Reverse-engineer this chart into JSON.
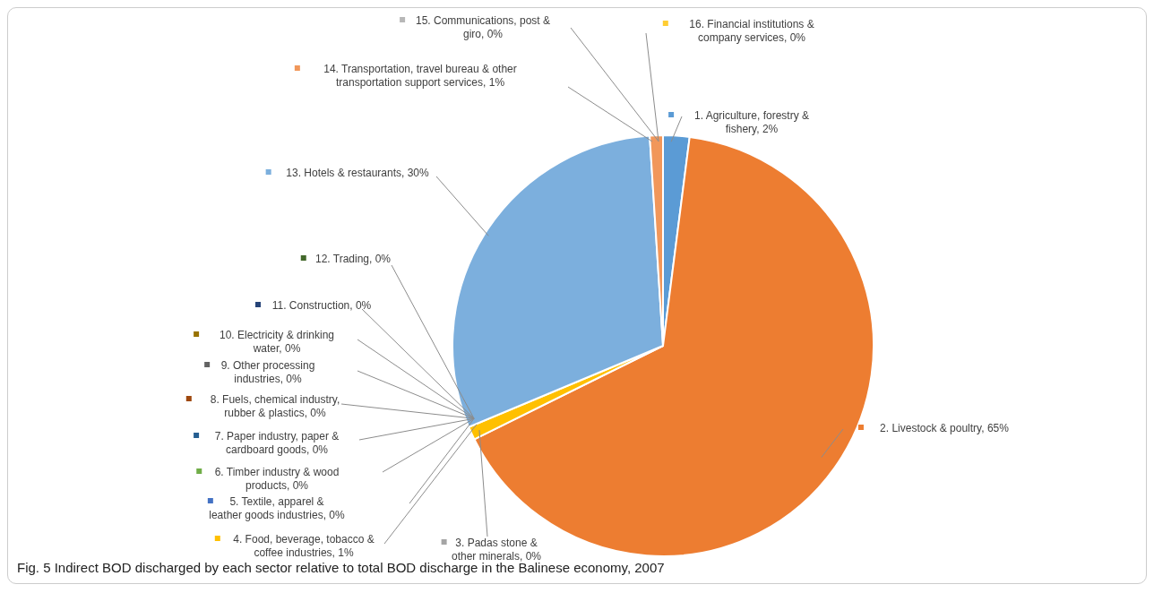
{
  "chart_data": {
    "type": "pie",
    "title": "Fig. 5 Indirect BOD discharged by each sector relative to total BOD discharge in the Balinese economy, 2007",
    "categories": [
      "1. Agriculture, forestry & fishery",
      "2. Livestock & poultry",
      "3. Padas stone & other minerals",
      "4. Food, beverage, tobacco & coffee industries",
      "5. Textile, apparel & leather goods industries",
      "6. Timber industry & wood products",
      "7. Paper industry, paper & cardboard goods",
      "8. Fuels, chemical industry, rubber & plastics",
      "9. Other processing industries",
      "10. Electricity & drinking water",
      "11. Construction",
      "12. Trading",
      "13. Hotels & restaurants",
      "14. Transportation, travel bureau & other transportation support services",
      "15. Communications, post & giro",
      "16. Financial institutions & company services"
    ],
    "values": [
      2,
      65,
      0,
      1,
      0,
      0,
      0,
      0,
      0,
      0,
      0,
      0,
      30,
      1,
      0,
      0
    ],
    "value_labels": [
      "2%",
      "65%",
      "0%",
      "1%",
      "0%",
      "0%",
      "0%",
      "0%",
      "0%",
      "0%",
      "0%",
      "0%",
      "30%",
      "1%",
      "0%",
      "0%"
    ],
    "colors": [
      "#5b9bd5",
      "#ed7d31",
      "#a5a5a5",
      "#ffc000",
      "#4472c4",
      "#70ad47",
      "#255e91",
      "#9e480e",
      "#636363",
      "#997300",
      "#264478",
      "#43682b",
      "#7cafdd",
      "#f1975a",
      "#b7b7b7",
      "#ffcd33"
    ],
    "legend": "left"
  }
}
